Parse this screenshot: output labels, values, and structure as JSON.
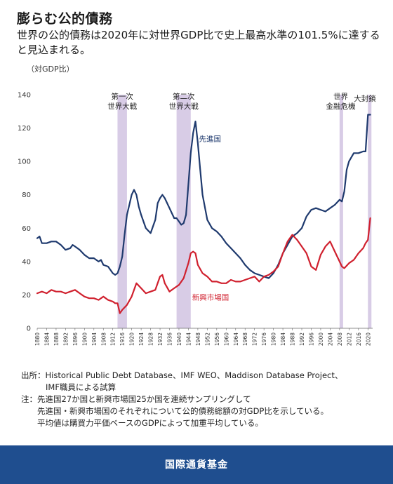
{
  "header": {
    "title": "膨らむ公的債務",
    "subtitle": "世界の公的債務は2020年に対世界GDP比で史上最高水準の101.5%に達すると見込まれる。",
    "unit": "（対GDP比）"
  },
  "notes": {
    "source_label": "出所：",
    "source_text": "Historical Public Debt Database、IMF WEO、Maddison Database Project、",
    "source_text2": "IMF職員による試算",
    "note_label": "注：",
    "note_lines": [
      "先進国27か国と新興市場国25か国を連続サンプリングして",
      "先進国・新興市場国のそれぞれについて公的債務総額の対GDP比を示している。",
      "平均値は購買力平価ベースのGDPによって加重平均している。"
    ]
  },
  "footer": {
    "label": "国際通貨基金"
  },
  "colors": {
    "advanced": "#1f3a6e",
    "emerging": "#d0202e",
    "band": "#d8cce6",
    "footer": "#1f4e8f"
  },
  "chart_data": {
    "type": "line",
    "ylim": [
      0,
      140
    ],
    "yticks": [
      0,
      20,
      40,
      60,
      80,
      100,
      120,
      140
    ],
    "xlim": [
      1880,
      2022
    ],
    "xticks": [
      1880,
      1884,
      1888,
      1892,
      1896,
      1900,
      1904,
      1908,
      1912,
      1916,
      1920,
      1924,
      1928,
      1932,
      1936,
      1940,
      1944,
      1948,
      1952,
      1956,
      1960,
      1964,
      1968,
      1972,
      1976,
      1980,
      1984,
      1988,
      1992,
      1996,
      2000,
      2004,
      2008,
      2012,
      2016,
      2020
    ],
    "bands": [
      {
        "label": "第一次\n世界大戦",
        "from": 1914,
        "to": 1918
      },
      {
        "label": "第二次\n世界大戦",
        "from": 1939,
        "to": 1945
      },
      {
        "label": "世界\n金融危機",
        "from": 2008,
        "to": 2009
      },
      {
        "label": "大封鎖",
        "from": 2020,
        "to": 2021
      }
    ],
    "series": [
      {
        "name": "先進国",
        "x": [
          1880,
          1881,
          1882,
          1884,
          1886,
          1888,
          1889,
          1890,
          1892,
          1894,
          1895,
          1896,
          1898,
          1900,
          1902,
          1903,
          1904,
          1906,
          1907,
          1908,
          1910,
          1912,
          1913,
          1914,
          1915,
          1916,
          1917,
          1918,
          1919,
          1920,
          1921,
          1922,
          1923,
          1924,
          1926,
          1928,
          1930,
          1931,
          1932,
          1933,
          1934,
          1936,
          1938,
          1939,
          1940,
          1941,
          1942,
          1943,
          1944,
          1945,
          1946,
          1947,
          1948,
          1949,
          1950,
          1952,
          1954,
          1956,
          1958,
          1960,
          1962,
          1964,
          1966,
          1968,
          1970,
          1972,
          1974,
          1976,
          1978,
          1980,
          1982,
          1984,
          1986,
          1988,
          1990,
          1992,
          1994,
          1996,
          1998,
          2000,
          2002,
          2004,
          2006,
          2008,
          2009,
          2010,
          2011,
          2012,
          2014,
          2016,
          2018,
          2019,
          2020,
          2021
        ],
        "y": [
          54,
          55,
          51,
          51,
          52,
          52,
          51,
          50,
          47,
          48,
          50,
          49,
          47,
          44,
          42,
          42,
          42,
          40,
          41,
          38,
          37,
          33,
          32,
          33,
          37,
          43,
          56,
          68,
          74,
          80,
          83,
          80,
          73,
          68,
          60,
          57,
          65,
          75,
          78,
          80,
          78,
          72,
          66,
          66,
          64,
          62,
          63,
          68,
          86,
          105,
          117,
          124,
          111,
          95,
          80,
          65,
          60,
          58,
          55,
          51,
          48,
          45,
          42,
          38,
          35,
          33,
          32,
          31,
          30,
          33,
          38,
          45,
          50,
          55,
          57,
          60,
          67,
          71,
          72,
          71,
          70,
          72,
          74,
          77,
          76,
          82,
          95,
          100,
          105,
          105,
          106,
          106,
          128,
          128
        ]
      },
      {
        "name": "新興市場国",
        "x": [
          1880,
          1882,
          1884,
          1886,
          1888,
          1890,
          1892,
          1894,
          1896,
          1898,
          1900,
          1902,
          1904,
          1906,
          1908,
          1910,
          1912,
          1913,
          1914,
          1915,
          1916,
          1918,
          1920,
          1922,
          1924,
          1926,
          1928,
          1930,
          1932,
          1933,
          1934,
          1936,
          1938,
          1940,
          1942,
          1944,
          1945,
          1946,
          1947,
          1948,
          1950,
          1952,
          1954,
          1956,
          1958,
          1960,
          1962,
          1964,
          1966,
          1968,
          1970,
          1972,
          1974,
          1976,
          1978,
          1980,
          1982,
          1984,
          1986,
          1988,
          1990,
          1992,
          1994,
          1996,
          1998,
          2000,
          2002,
          2004,
          2006,
          2008,
          2009,
          2010,
          2012,
          2014,
          2016,
          2018,
          2019,
          2020,
          2021
        ],
        "y": [
          21,
          22,
          21,
          23,
          22,
          22,
          21,
          22,
          23,
          21,
          19,
          18,
          18,
          17,
          19,
          17,
          16,
          15,
          15,
          9,
          11,
          14,
          19,
          27,
          24,
          21,
          22,
          23,
          31,
          32,
          27,
          22,
          24,
          26,
          30,
          39,
          45,
          46,
          45,
          38,
          33,
          31,
          28,
          28,
          27,
          27,
          29,
          28,
          28,
          29,
          30,
          31,
          28,
          31,
          32,
          34,
          37,
          45,
          52,
          56,
          53,
          49,
          45,
          37,
          35,
          44,
          49,
          52,
          46,
          40,
          37,
          36,
          39,
          41,
          45,
          48,
          51,
          53,
          66
        ]
      }
    ]
  }
}
